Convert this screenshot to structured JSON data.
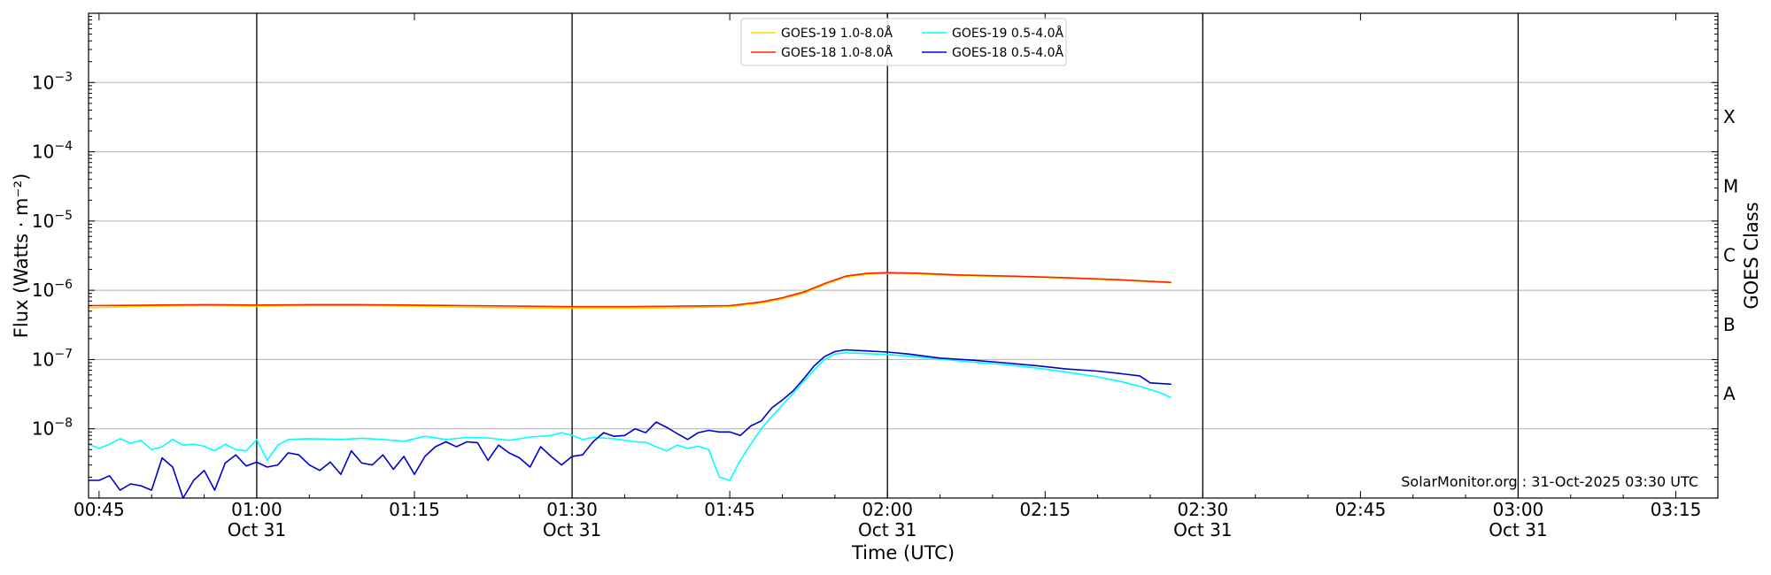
{
  "chart_data": {
    "type": "line",
    "xlabel": "Time (UTC)",
    "ylabel": "Flux (Watts · m⁻²)",
    "ylabel_right": "GOES Class",
    "yscale": "log",
    "xlim": [
      "00:44",
      "03:19"
    ],
    "ylim": [
      1e-09,
      0.01
    ],
    "grid": "horizontal major + black vertical lines at half-hours",
    "legend_position": "top-center",
    "watermark": "SolarMonitor.org : 31-Oct-2025 03:30 UTC",
    "x_ticks": [
      {
        "time": "00:45",
        "line1": "00:45",
        "line2": ""
      },
      {
        "time": "01:00",
        "line1": "01:00",
        "line2": "Oct 31"
      },
      {
        "time": "01:15",
        "line1": "01:15",
        "line2": ""
      },
      {
        "time": "01:30",
        "line1": "01:30",
        "line2": "Oct 31"
      },
      {
        "time": "01:45",
        "line1": "01:45",
        "line2": ""
      },
      {
        "time": "02:00",
        "line1": "02:00",
        "line2": "Oct 31"
      },
      {
        "time": "02:15",
        "line1": "02:15",
        "line2": ""
      },
      {
        "time": "02:30",
        "line1": "02:30",
        "line2": "Oct 31"
      },
      {
        "time": "02:45",
        "line1": "02:45",
        "line2": ""
      },
      {
        "time": "03:00",
        "line1": "03:00",
        "line2": "Oct 31"
      },
      {
        "time": "03:15",
        "line1": "03:15",
        "line2": ""
      }
    ],
    "y_ticks": [
      {
        "value": 1e-08,
        "base": "10",
        "exp": "−8"
      },
      {
        "value": 1e-07,
        "base": "10",
        "exp": "−7"
      },
      {
        "value": 1e-06,
        "base": "10",
        "exp": "−6"
      },
      {
        "value": 1e-05,
        "base": "10",
        "exp": "−5"
      },
      {
        "value": 0.0001,
        "base": "10",
        "exp": "−4"
      },
      {
        "value": 0.001,
        "base": "10",
        "exp": "−3"
      }
    ],
    "goes_classes": [
      {
        "label": "A",
        "value": 3.2e-08
      },
      {
        "label": "B",
        "value": 3.2e-07
      },
      {
        "label": "C",
        "value": 3.2e-06
      },
      {
        "label": "M",
        "value": 3.2e-05
      },
      {
        "label": "X",
        "value": 0.00032
      }
    ],
    "half_hour_lines": [
      "01:00",
      "01:30",
      "02:00",
      "02:30",
      "03:00"
    ],
    "series": [
      {
        "name": "GOES-19 1.0-8.0Å",
        "color": "#ffd700",
        "points": [
          [
            "00:44",
            5.6e-07
          ],
          [
            "00:50",
            5.9e-07
          ],
          [
            "00:55",
            6e-07
          ],
          [
            "01:00",
            5.9e-07
          ],
          [
            "01:05",
            6e-07
          ],
          [
            "01:10",
            6e-07
          ],
          [
            "01:15",
            5.9e-07
          ],
          [
            "01:20",
            5.7e-07
          ],
          [
            "01:25",
            5.6e-07
          ],
          [
            "01:30",
            5.5e-07
          ],
          [
            "01:35",
            5.5e-07
          ],
          [
            "01:40",
            5.6e-07
          ],
          [
            "01:45",
            5.8e-07
          ],
          [
            "01:48",
            6.5e-07
          ],
          [
            "01:50",
            7.5e-07
          ],
          [
            "01:52",
            9e-07
          ],
          [
            "01:54",
            1.2e-06
          ],
          [
            "01:56",
            1.55e-06
          ],
          [
            "01:58",
            1.7e-06
          ],
          [
            "02:00",
            1.75e-06
          ],
          [
            "02:03",
            1.72e-06
          ],
          [
            "02:07",
            1.62e-06
          ],
          [
            "02:12",
            1.58e-06
          ],
          [
            "02:17",
            1.5e-06
          ],
          [
            "02:22",
            1.4e-06
          ],
          [
            "02:27",
            1.28e-06
          ]
        ]
      },
      {
        "name": "GOES-18 1.0-8.0Å",
        "color": "#ff2200",
        "points": [
          [
            "00:44",
            6e-07
          ],
          [
            "00:50",
            6.1e-07
          ],
          [
            "00:55",
            6.2e-07
          ],
          [
            "01:00",
            6.1e-07
          ],
          [
            "01:05",
            6.2e-07
          ],
          [
            "01:10",
            6.2e-07
          ],
          [
            "01:15",
            6.1e-07
          ],
          [
            "01:20",
            6e-07
          ],
          [
            "01:25",
            5.9e-07
          ],
          [
            "01:30",
            5.8e-07
          ],
          [
            "01:35",
            5.8e-07
          ],
          [
            "01:40",
            5.9e-07
          ],
          [
            "01:45",
            6e-07
          ],
          [
            "01:48",
            6.8e-07
          ],
          [
            "01:50",
            7.8e-07
          ],
          [
            "01:52",
            9.4e-07
          ],
          [
            "01:54",
            1.25e-06
          ],
          [
            "01:56",
            1.6e-06
          ],
          [
            "01:58",
            1.75e-06
          ],
          [
            "02:00",
            1.8e-06
          ],
          [
            "02:03",
            1.76e-06
          ],
          [
            "02:07",
            1.66e-06
          ],
          [
            "02:12",
            1.6e-06
          ],
          [
            "02:17",
            1.52e-06
          ],
          [
            "02:22",
            1.42e-06
          ],
          [
            "02:27",
            1.3e-06
          ]
        ]
      },
      {
        "name": "GOES-19 0.5-4.0Å",
        "color": "#00ffff",
        "points": [
          [
            "00:44",
            6e-09
          ],
          [
            "00:45",
            5.2e-09
          ],
          [
            "00:46",
            6e-09
          ],
          [
            "00:47",
            7.2e-09
          ],
          [
            "00:48",
            6.2e-09
          ],
          [
            "00:49",
            6.8e-09
          ],
          [
            "00:50",
            5e-09
          ],
          [
            "00:51",
            5.5e-09
          ],
          [
            "00:52",
            7e-09
          ],
          [
            "00:53",
            5.8e-09
          ],
          [
            "00:54",
            6e-09
          ],
          [
            "00:55",
            5.6e-09
          ],
          [
            "00:56",
            4.8e-09
          ],
          [
            "00:57",
            6e-09
          ],
          [
            "00:58",
            5e-09
          ],
          [
            "00:59",
            4.8e-09
          ],
          [
            "01:00",
            7e-09
          ],
          [
            "01:01",
            3.5e-09
          ],
          [
            "01:02",
            5.8e-09
          ],
          [
            "01:03",
            7e-09
          ],
          [
            "01:05",
            7.2e-09
          ],
          [
            "01:08",
            7e-09
          ],
          [
            "01:10",
            7.3e-09
          ],
          [
            "01:12",
            7e-09
          ],
          [
            "01:14",
            6.6e-09
          ],
          [
            "01:16",
            7.8e-09
          ],
          [
            "01:18",
            7e-09
          ],
          [
            "01:20",
            7.5e-09
          ],
          [
            "01:22",
            7.4e-09
          ],
          [
            "01:24",
            6.8e-09
          ],
          [
            "01:26",
            7.6e-09
          ],
          [
            "01:28",
            8e-09
          ],
          [
            "01:29",
            8.8e-09
          ],
          [
            "01:30",
            8e-09
          ],
          [
            "01:31",
            7e-09
          ],
          [
            "01:32",
            7.5e-09
          ],
          [
            "01:34",
            7.2e-09
          ],
          [
            "01:36",
            6.5e-09
          ],
          [
            "01:37",
            6.4e-09
          ],
          [
            "01:38",
            5.5e-09
          ],
          [
            "01:39",
            4.8e-09
          ],
          [
            "01:40",
            5.8e-09
          ],
          [
            "01:41",
            5.2e-09
          ],
          [
            "01:42",
            5.6e-09
          ],
          [
            "01:43",
            5e-09
          ],
          [
            "01:44",
            2e-09
          ],
          [
            "01:45",
            1.8e-09
          ],
          [
            "01:46",
            3.5e-09
          ],
          [
            "01:47",
            6e-09
          ],
          [
            "01:48",
            1e-08
          ],
          [
            "01:49",
            1.5e-08
          ],
          [
            "01:50",
            2.2e-08
          ],
          [
            "01:51",
            3.2e-08
          ],
          [
            "01:52",
            4.8e-08
          ],
          [
            "01:53",
            7e-08
          ],
          [
            "01:54",
            1e-07
          ],
          [
            "01:55",
            1.2e-07
          ],
          [
            "01:56",
            1.25e-07
          ],
          [
            "01:58",
            1.22e-07
          ],
          [
            "02:00",
            1.18e-07
          ],
          [
            "02:02",
            1.12e-07
          ],
          [
            "02:05",
            1.02e-07
          ],
          [
            "02:08",
            9.2e-08
          ],
          [
            "02:11",
            8.5e-08
          ],
          [
            "02:14",
            7.6e-08
          ],
          [
            "02:17",
            6.6e-08
          ],
          [
            "02:20",
            5.6e-08
          ],
          [
            "02:22",
            4.9e-08
          ],
          [
            "02:24",
            4.1e-08
          ],
          [
            "02:26",
            3.3e-08
          ],
          [
            "02:27",
            2.8e-08
          ]
        ]
      },
      {
        "name": "GOES-18 0.5-4.0Å",
        "color": "#0000cd",
        "points": [
          [
            "00:44",
            1.8e-09
          ],
          [
            "00:45",
            1.8e-09
          ],
          [
            "00:46",
            2.1e-09
          ],
          [
            "00:47",
            1.3e-09
          ],
          [
            "00:48",
            1.6e-09
          ],
          [
            "00:49",
            1.5e-09
          ],
          [
            "00:50",
            1.3e-09
          ],
          [
            "00:51",
            3.8e-09
          ],
          [
            "00:52",
            2.8e-09
          ],
          [
            "00:53",
            1e-09
          ],
          [
            "00:54",
            1.8e-09
          ],
          [
            "00:55",
            2.5e-09
          ],
          [
            "00:56",
            1.3e-09
          ],
          [
            "00:57",
            3.2e-09
          ],
          [
            "00:58",
            4.2e-09
          ],
          [
            "00:59",
            2.9e-09
          ],
          [
            "01:00",
            3.3e-09
          ],
          [
            "01:01",
            2.8e-09
          ],
          [
            "01:02",
            3e-09
          ],
          [
            "01:03",
            4.5e-09
          ],
          [
            "01:04",
            4.2e-09
          ],
          [
            "01:05",
            3e-09
          ],
          [
            "01:06",
            2.5e-09
          ],
          [
            "01:07",
            3.3e-09
          ],
          [
            "01:08",
            2.2e-09
          ],
          [
            "01:09",
            4.8e-09
          ],
          [
            "01:10",
            3.2e-09
          ],
          [
            "01:11",
            3e-09
          ],
          [
            "01:12",
            4.2e-09
          ],
          [
            "01:13",
            2.6e-09
          ],
          [
            "01:14",
            4e-09
          ],
          [
            "01:15",
            2.2e-09
          ],
          [
            "01:16",
            4e-09
          ],
          [
            "01:17",
            5.5e-09
          ],
          [
            "01:18",
            6.5e-09
          ],
          [
            "01:19",
            5.5e-09
          ],
          [
            "01:20",
            6.5e-09
          ],
          [
            "01:21",
            6.3e-09
          ],
          [
            "01:22",
            3.5e-09
          ],
          [
            "01:23",
            5.8e-09
          ],
          [
            "01:24",
            4.5e-09
          ],
          [
            "01:25",
            3.8e-09
          ],
          [
            "01:26",
            2.8e-09
          ],
          [
            "01:27",
            5.5e-09
          ],
          [
            "01:28",
            4e-09
          ],
          [
            "01:29",
            3e-09
          ],
          [
            "01:30",
            4e-09
          ],
          [
            "01:31",
            4.2e-09
          ],
          [
            "01:32",
            6.5e-09
          ],
          [
            "01:33",
            8.8e-09
          ],
          [
            "01:34",
            7.8e-09
          ],
          [
            "01:35",
            8e-09
          ],
          [
            "01:36",
            1e-08
          ],
          [
            "01:37",
            8.8e-09
          ],
          [
            "01:38",
            1.25e-08
          ],
          [
            "01:39",
            1.05e-08
          ],
          [
            "01:40",
            8.5e-09
          ],
          [
            "01:41",
            7e-09
          ],
          [
            "01:42",
            8.8e-09
          ],
          [
            "01:43",
            9.5e-09
          ],
          [
            "01:44",
            9e-09
          ],
          [
            "01:45",
            9e-09
          ],
          [
            "01:46",
            8e-09
          ],
          [
            "01:47",
            1.1e-08
          ],
          [
            "01:48",
            1.3e-08
          ],
          [
            "01:49",
            2e-08
          ],
          [
            "01:50",
            2.6e-08
          ],
          [
            "01:51",
            3.5e-08
          ],
          [
            "01:52",
            5.2e-08
          ],
          [
            "01:53",
            8e-08
          ],
          [
            "01:54",
            1.1e-07
          ],
          [
            "01:55",
            1.3e-07
          ],
          [
            "01:56",
            1.38e-07
          ],
          [
            "01:58",
            1.33e-07
          ],
          [
            "02:00",
            1.28e-07
          ],
          [
            "02:02",
            1.2e-07
          ],
          [
            "02:05",
            1.05e-07
          ],
          [
            "02:08",
            9.8e-08
          ],
          [
            "02:11",
            9e-08
          ],
          [
            "02:14",
            8.2e-08
          ],
          [
            "02:17",
            7.3e-08
          ],
          [
            "02:20",
            6.8e-08
          ],
          [
            "02:22",
            6.3e-08
          ],
          [
            "02:24",
            5.8e-08
          ],
          [
            "02:25",
            4.6e-08
          ],
          [
            "02:27",
            4.4e-08
          ]
        ]
      }
    ]
  }
}
